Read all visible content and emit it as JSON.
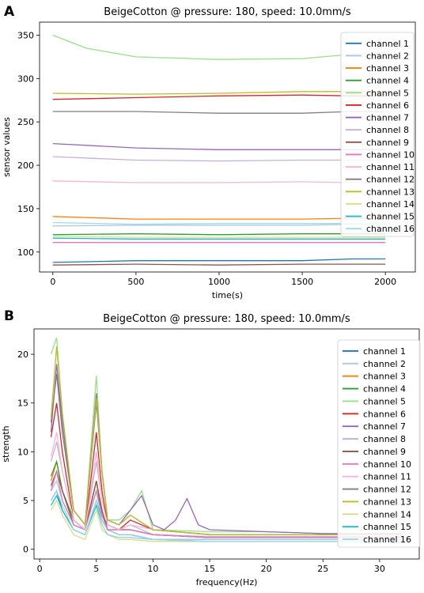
{
  "chart_data": [
    {
      "panel": "A",
      "type": "line",
      "title": "BeigeCotton @ pressure: 180, speed: 10.0mm/s",
      "xlabel": "time(s)",
      "ylabel": "sensor values",
      "xlim": [
        -80,
        2180
      ],
      "ylim": [
        77,
        365
      ],
      "xticks": [
        0,
        500,
        1000,
        1500,
        2000
      ],
      "yticks": [
        100,
        150,
        200,
        250,
        300,
        350
      ],
      "grid": false,
      "legend_position": "right",
      "series": [
        {
          "name": "channel 1",
          "color": "#1f77b4",
          "x": [
            0,
            500,
            1000,
            1500,
            1800,
            2000
          ],
          "y": [
            88,
            90,
            90,
            90,
            92,
            92
          ]
        },
        {
          "name": "channel 2",
          "color": "#aec7e8",
          "x": [
            0,
            500,
            1000,
            1500,
            1800,
            2000
          ],
          "y": [
            130,
            131,
            131,
            131,
            132,
            132
          ]
        },
        {
          "name": "channel 3",
          "color": "#ff7f0e",
          "x": [
            0,
            500,
            1000,
            1500,
            1800,
            2000
          ],
          "y": [
            141,
            138,
            138,
            138,
            139,
            139
          ]
        },
        {
          "name": "channel 4",
          "color": "#2ca02c",
          "x": [
            0,
            500,
            1000,
            1500,
            1800,
            2000
          ],
          "y": [
            120,
            121,
            120,
            121,
            121,
            121
          ]
        },
        {
          "name": "channel 5",
          "color": "#98df8a",
          "x": [
            0,
            200,
            500,
            1000,
            1500,
            1800,
            2000
          ],
          "y": [
            350,
            335,
            325,
            322,
            323,
            328,
            330
          ]
        },
        {
          "name": "channel 6",
          "color": "#d62728",
          "x": [
            0,
            500,
            1000,
            1500,
            1800,
            2000
          ],
          "y": [
            276,
            278,
            280,
            281,
            280,
            280
          ]
        },
        {
          "name": "channel 7",
          "color": "#9467bd",
          "x": [
            0,
            500,
            1000,
            1500,
            1800,
            2000
          ],
          "y": [
            225,
            220,
            218,
            218,
            218,
            218
          ]
        },
        {
          "name": "channel 8",
          "color": "#c5b0d5",
          "x": [
            0,
            500,
            1000,
            1500,
            1800,
            2000
          ],
          "y": [
            210,
            206,
            205,
            206,
            206,
            206
          ]
        },
        {
          "name": "channel 9",
          "color": "#8c564b",
          "x": [
            0,
            500,
            1000,
            1500,
            1800,
            2000
          ],
          "y": [
            85,
            86,
            85,
            86,
            86,
            86
          ]
        },
        {
          "name": "channel 10",
          "color": "#e377c2",
          "x": [
            0,
            500,
            1000,
            1500,
            1800,
            2000
          ],
          "y": [
            111,
            111,
            111,
            111,
            111,
            111
          ]
        },
        {
          "name": "channel 11",
          "color": "#f7b6d2",
          "x": [
            0,
            500,
            1000,
            1500,
            1800,
            2000
          ],
          "y": [
            182,
            180,
            180,
            181,
            180,
            180
          ]
        },
        {
          "name": "channel 12",
          "color": "#7f7f7f",
          "x": [
            0,
            500,
            1000,
            1500,
            1800,
            2000
          ],
          "y": [
            262,
            262,
            260,
            260,
            262,
            262
          ]
        },
        {
          "name": "channel 13",
          "color": "#bcbd22",
          "x": [
            0,
            500,
            1000,
            1500,
            1800,
            2000
          ],
          "y": [
            283,
            282,
            283,
            285,
            285,
            285
          ]
        },
        {
          "name": "channel 14",
          "color": "#dbdb8d",
          "x": [
            0,
            500,
            1000,
            1500,
            1800,
            2000
          ],
          "y": [
            118,
            117,
            117,
            117,
            117,
            117
          ]
        },
        {
          "name": "channel 15",
          "color": "#17becf",
          "x": [
            0,
            500,
            1000,
            1500,
            1800,
            2000
          ],
          "y": [
            116,
            115,
            115,
            115,
            115,
            115
          ]
        },
        {
          "name": "channel 16",
          "color": "#9edae5",
          "x": [
            0,
            500,
            1000,
            1500,
            1800,
            2000
          ],
          "y": [
            134,
            132,
            133,
            133,
            133,
            133
          ]
        }
      ]
    },
    {
      "panel": "B",
      "type": "line",
      "title": "BeigeCotton @ pressure: 180, speed: 10.0mm/s",
      "xlabel": "frequency(Hz)",
      "ylabel": "strength",
      "xlim": [
        -0.5,
        33.5
      ],
      "ylim": [
        -1,
        22.6
      ],
      "xticks": [
        0,
        5,
        10,
        15,
        20,
        25,
        30
      ],
      "yticks": [
        0,
        5,
        10,
        15,
        20
      ],
      "grid": false,
      "legend_position": "right",
      "series": [
        {
          "name": "channel 1",
          "color": "#1f77b4",
          "x": [
            1,
            1.5,
            2,
            3,
            4,
            5,
            5.5,
            6,
            7,
            8,
            10,
            15,
            20,
            25,
            30,
            32
          ],
          "y": [
            5,
            6,
            4,
            2,
            1.5,
            5,
            3,
            2,
            1.5,
            1.5,
            1,
            1,
            1,
            1,
            1,
            1
          ]
        },
        {
          "name": "channel 2",
          "color": "#aec7e8",
          "x": [
            1,
            1.5,
            2,
            3,
            4,
            5,
            5.5,
            6,
            7,
            8,
            10,
            15,
            20,
            25,
            30,
            32
          ],
          "y": [
            6,
            7,
            5,
            2.5,
            2,
            6,
            3,
            2,
            1.5,
            1.5,
            1,
            1,
            1,
            1,
            1,
            1
          ]
        },
        {
          "name": "channel 3",
          "color": "#ff7f0e",
          "x": [
            1,
            1.5,
            2,
            3,
            4,
            5,
            5.5,
            6,
            7,
            8,
            10,
            15,
            20,
            25,
            30,
            32
          ],
          "y": [
            7,
            9,
            6,
            3,
            2,
            7,
            3.5,
            2.5,
            2,
            2,
            1.5,
            1.2,
            1.2,
            1.2,
            1.2,
            1.2
          ]
        },
        {
          "name": "channel 4",
          "color": "#2ca02c",
          "x": [
            1,
            1.5,
            2,
            3,
            4,
            5,
            5.5,
            6,
            7,
            8,
            10,
            15,
            20,
            25,
            30,
            32
          ],
          "y": [
            7.5,
            9,
            6,
            3,
            2,
            7,
            3.5,
            2.5,
            2,
            2,
            1.5,
            1.2,
            1.2,
            1.2,
            1.2,
            1.2
          ]
        },
        {
          "name": "channel 5",
          "color": "#98df8a",
          "x": [
            1,
            1.5,
            2,
            3,
            4,
            5,
            5.5,
            6,
            7,
            8,
            9,
            10,
            15,
            20,
            25,
            30,
            32
          ],
          "y": [
            20,
            21.7,
            14,
            4,
            2.5,
            17.8,
            8,
            3,
            3,
            4,
            6,
            2,
            1.8,
            1.8,
            1.6,
            1.6,
            1.6
          ]
        },
        {
          "name": "channel 6",
          "color": "#d62728",
          "x": [
            1,
            1.5,
            2,
            3,
            4,
            5,
            5.5,
            6,
            7,
            8,
            10,
            15,
            20,
            25,
            30,
            32
          ],
          "y": [
            11.5,
            15,
            10,
            3,
            2,
            12,
            6,
            2.5,
            2,
            3,
            2,
            1.5,
            1.5,
            1.5,
            1.5,
            1.5
          ]
        },
        {
          "name": "channel 7",
          "color": "#9467bd",
          "x": [
            1,
            1.5,
            2,
            3,
            4,
            5,
            5.5,
            6,
            7,
            8,
            9,
            10,
            11,
            12,
            13,
            14,
            15,
            20,
            25,
            30,
            32
          ],
          "y": [
            12,
            19,
            13,
            4,
            2.5,
            15,
            8,
            3,
            2.5,
            4,
            5.5,
            2.5,
            2,
            3,
            5.2,
            2.5,
            2,
            1.8,
            1.6,
            1.6,
            1.6
          ]
        },
        {
          "name": "channel 8",
          "color": "#c5b0d5",
          "x": [
            1,
            1.5,
            2,
            3,
            4,
            5,
            5.5,
            6,
            7,
            8,
            10,
            15,
            20,
            25,
            30,
            32
          ],
          "y": [
            9,
            11,
            8,
            3,
            2,
            9,
            5,
            2.5,
            2,
            2.5,
            1.5,
            1.3,
            1.3,
            1.3,
            1.3,
            1.3
          ]
        },
        {
          "name": "channel 9",
          "color": "#8c564b",
          "x": [
            1,
            1.5,
            2,
            3,
            4,
            5,
            5.5,
            6,
            7,
            8,
            10,
            15,
            20,
            25,
            30,
            32
          ],
          "y": [
            6.5,
            8,
            6,
            2.5,
            2,
            7,
            4,
            2,
            2,
            2,
            1.5,
            1.2,
            1.2,
            1.2,
            1.2,
            1.2
          ]
        },
        {
          "name": "channel 10",
          "color": "#e377c2",
          "x": [
            1,
            1.5,
            2,
            3,
            4,
            5,
            5.5,
            6,
            7,
            8,
            10,
            15,
            20,
            25,
            30,
            32
          ],
          "y": [
            6,
            8,
            5,
            2.5,
            2,
            6,
            3.5,
            2,
            2,
            2,
            1.5,
            1.2,
            1.2,
            1.2,
            1.2,
            1.2
          ]
        },
        {
          "name": "channel 11",
          "color": "#f7b6d2",
          "x": [
            1,
            1.5,
            2,
            3,
            4,
            5,
            5.5,
            6,
            7,
            8,
            10,
            15,
            20,
            25,
            30,
            32
          ],
          "y": [
            9.5,
            12,
            8,
            3,
            2,
            10,
            5,
            2.5,
            2,
            2.5,
            2,
            1.5,
            1.5,
            1.5,
            1.5,
            1.5
          ]
        },
        {
          "name": "channel 12",
          "color": "#7f7f7f",
          "x": [
            1,
            1.5,
            2,
            3,
            4,
            5,
            5.5,
            6,
            7,
            8,
            10,
            15,
            20,
            25,
            30,
            32
          ],
          "y": [
            13,
            18,
            12,
            4,
            2.5,
            16,
            8,
            3,
            2.5,
            3.5,
            2,
            1.5,
            1.5,
            1.5,
            1.5,
            1.5
          ]
        },
        {
          "name": "channel 13",
          "color": "#bcbd22",
          "x": [
            1,
            1.5,
            2,
            3,
            4,
            5,
            5.5,
            6,
            7,
            8,
            10,
            15,
            20,
            25,
            30,
            32
          ],
          "y": [
            13.5,
            20.8,
            14,
            4,
            2.5,
            15.5,
            8,
            3,
            2.5,
            3.5,
            2,
            1.5,
            1.5,
            1.5,
            1.5,
            1.5
          ]
        },
        {
          "name": "channel 14",
          "color": "#dbdb8d",
          "x": [
            1,
            1.5,
            2,
            3,
            4,
            5,
            5.5,
            6,
            7,
            8,
            10,
            15,
            20,
            25,
            30,
            32
          ],
          "y": [
            4,
            5,
            3.5,
            1.5,
            1,
            4,
            2,
            1.5,
            1,
            1,
            0.8,
            0.8,
            0.8,
            0.8,
            0.8,
            0.8
          ]
        },
        {
          "name": "channel 15",
          "color": "#17becf",
          "x": [
            1,
            1.5,
            2,
            3,
            4,
            5,
            5.5,
            6,
            7,
            8,
            10,
            15,
            20,
            25,
            30,
            32
          ],
          "y": [
            4.5,
            5.5,
            4,
            2,
            1.5,
            4.5,
            2.5,
            1.5,
            1.2,
            1.2,
            1,
            0.8,
            0.8,
            0.8,
            0.8,
            0.8
          ]
        },
        {
          "name": "channel 16",
          "color": "#9edae5",
          "x": [
            1,
            1.5,
            2,
            3,
            4,
            5,
            5.5,
            6,
            7,
            8,
            10,
            15,
            20,
            25,
            30,
            32
          ],
          "y": [
            5,
            6,
            4.5,
            2,
            1.5,
            5,
            2.5,
            1.5,
            1.2,
            1.2,
            1,
            0.8,
            0.8,
            0.8,
            0.8,
            0.8
          ]
        }
      ]
    }
  ]
}
